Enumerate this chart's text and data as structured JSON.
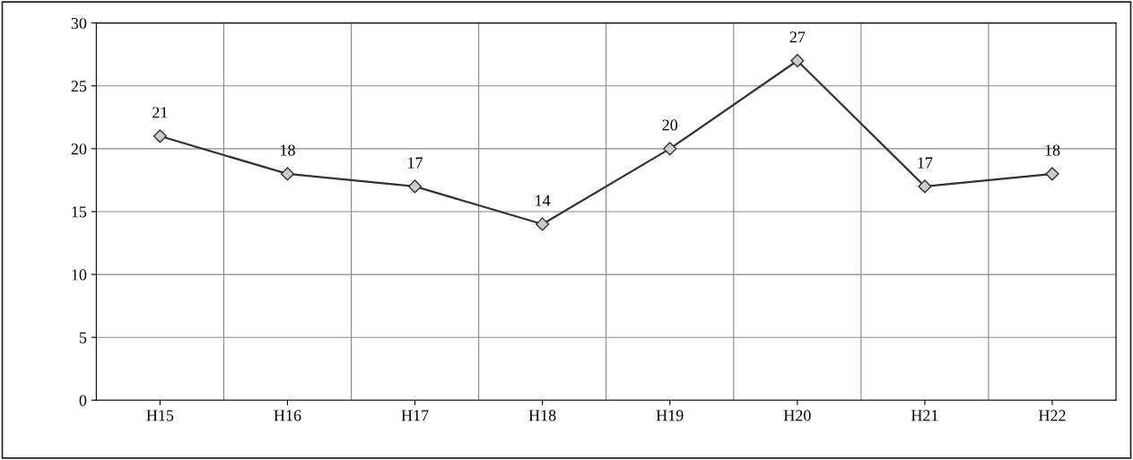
{
  "chart_data": {
    "type": "line",
    "categories": [
      "H15",
      "H16",
      "H17",
      "H18",
      "H19",
      "H20",
      "H21",
      "H22"
    ],
    "values": [
      21,
      18,
      17,
      14,
      20,
      27,
      17,
      18
    ],
    "color": "#333333",
    "ylim": [
      0,
      30
    ],
    "yticks": [
      0,
      5,
      10,
      15,
      20,
      25,
      30
    ],
    "grid": true,
    "marker": "diamond",
    "line_style": "solid",
    "data_labels": true
  }
}
